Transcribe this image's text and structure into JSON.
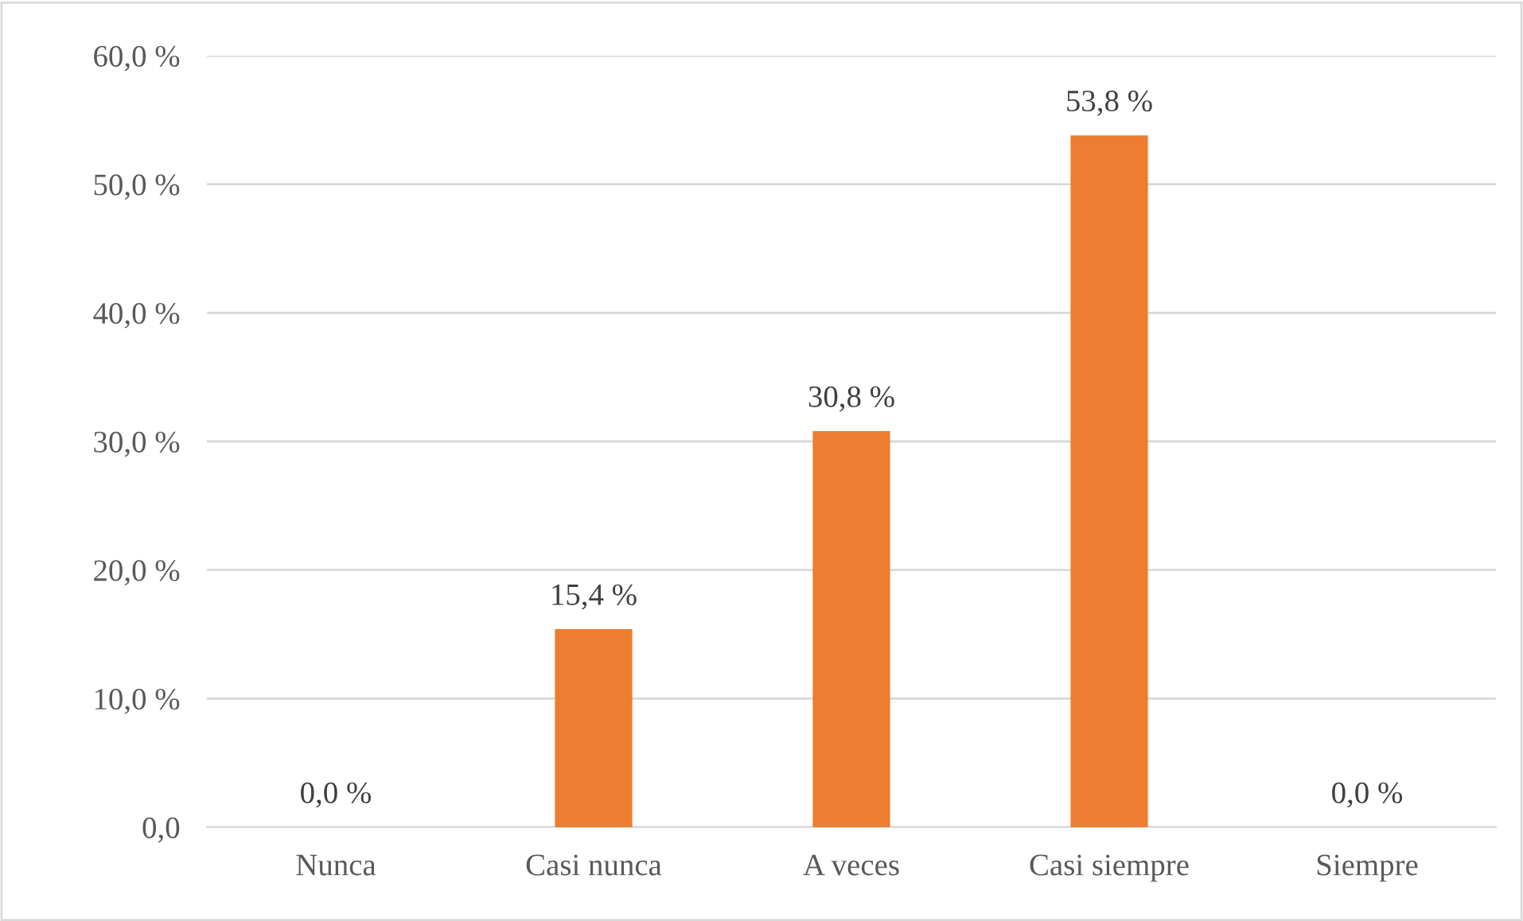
{
  "chart_data": {
    "type": "bar",
    "categories": [
      "Nunca",
      "Casi nunca",
      "A veces",
      "Casi siempre",
      "Siempre"
    ],
    "values": [
      0.0,
      15.4,
      30.8,
      53.8,
      0.0
    ],
    "value_labels": [
      "0,0 %",
      "15,4 %",
      "30,8 %",
      "53,8 %",
      "0,0 %"
    ],
    "color": "#ed7d31",
    "ylim": [
      0,
      60
    ],
    "yticks": [
      {
        "value": 0,
        "label": "0,0"
      },
      {
        "value": 10,
        "label": "10,0 %"
      },
      {
        "value": 20,
        "label": "20,0 %"
      },
      {
        "value": 30,
        "label": "30,0 %"
      },
      {
        "value": 40,
        "label": "40,0 %"
      },
      {
        "value": 50,
        "label": "50,0 %"
      },
      {
        "value": 60,
        "label": "60,0 %"
      }
    ],
    "grid": "y",
    "legend": false
  }
}
